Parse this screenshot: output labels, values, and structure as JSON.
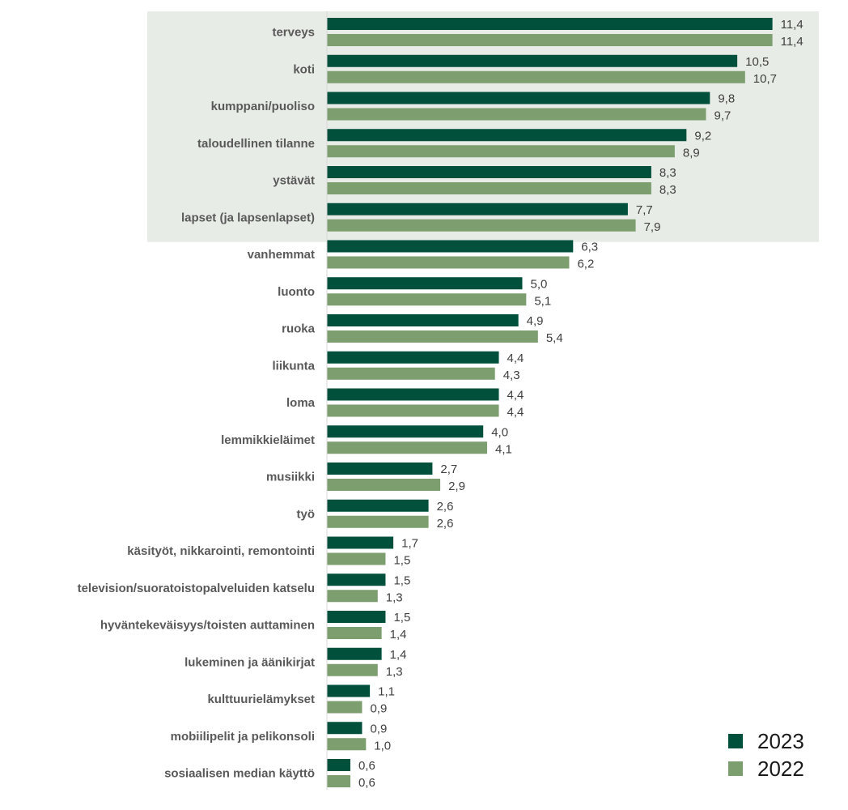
{
  "chart_data": {
    "type": "bar",
    "orientation": "horizontal",
    "categories": [
      "terveys",
      "koti",
      "kumppani/puoliso",
      "taloudellinen tilanne",
      "ystävät",
      "lapset (ja lapsenlapset)",
      "vanhemmat",
      "luonto",
      "ruoka",
      "liikunta",
      "loma",
      "lemmikkieläimet",
      "musiikki",
      "työ",
      "käsityöt, nikkarointi, remontointi",
      "television/suoratoistopalveluiden katselu",
      "hyväntekeväisyys/toisten auttaminen",
      "lukeminen ja äänikirjat",
      "kulttuurielämykset",
      "mobiilipelit ja pelikonsoli",
      "sosiaalisen median käyttö"
    ],
    "series": [
      {
        "name": "2023",
        "color": "#00503c",
        "values": [
          11.4,
          10.5,
          9.8,
          9.2,
          8.3,
          7.7,
          6.3,
          5.0,
          4.9,
          4.4,
          4.4,
          4.0,
          2.7,
          2.6,
          1.7,
          1.5,
          1.5,
          1.4,
          1.1,
          0.9,
          0.6
        ],
        "labels": [
          "11,4",
          "10,5",
          "9,8",
          "9,2",
          "8,3",
          "7,7",
          "6,3",
          "5,0",
          "4,9",
          "4,4",
          "4,4",
          "4,0",
          "2,7",
          "2,6",
          "1,7",
          "1,5",
          "1,5",
          "1,4",
          "1,1",
          "0,9",
          "0,6"
        ]
      },
      {
        "name": "2022",
        "color": "#7d9e6e",
        "values": [
          11.4,
          10.7,
          9.7,
          8.9,
          8.3,
          7.9,
          6.2,
          5.1,
          5.4,
          4.3,
          4.4,
          4.1,
          2.9,
          2.6,
          1.5,
          1.3,
          1.4,
          1.3,
          0.9,
          1.0,
          0.6
        ],
        "labels": [
          "11,4",
          "10,7",
          "9,7",
          "8,9",
          "8,3",
          "7,9",
          "6,2",
          "5,1",
          "5,4",
          "4,3",
          "4,4",
          "4,1",
          "2,9",
          "2,6",
          "1,5",
          "1,3",
          "1,4",
          "1,3",
          "0,9",
          "1,0",
          "0,6"
        ]
      }
    ],
    "xlim": [
      0,
      11.4
    ],
    "highlight": {
      "categories_count": 6,
      "color": "#e8ece6"
    },
    "axis_color": "#d9d9d9",
    "legend": {
      "position": "bottom-right",
      "entries": [
        "2023",
        "2022"
      ]
    },
    "grid": false
  }
}
